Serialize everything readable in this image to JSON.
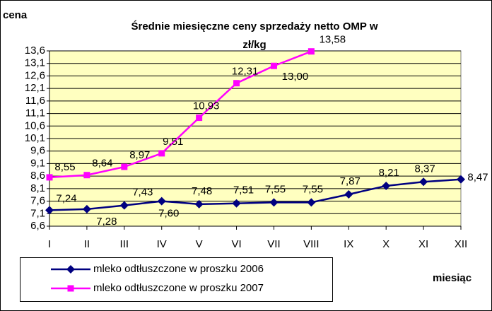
{
  "chart_data": {
    "type": "line",
    "title": [
      "Średnie miesięczne ceny sprzedaży netto OMP w",
      "zł/kg"
    ],
    "y_label": "cena",
    "x_label": "miesiąc",
    "categories": [
      "I",
      "II",
      "III",
      "IV",
      "V",
      "VI",
      "VII",
      "VIII",
      "IX",
      "X",
      "XI",
      "XII"
    ],
    "series": [
      {
        "name": "mleko odtłuszczone w  proszku 2006",
        "color": "#000080",
        "marker": "diamond",
        "values": [
          7.24,
          7.28,
          7.43,
          7.6,
          7.48,
          7.51,
          7.55,
          7.55,
          7.87,
          8.21,
          8.37,
          8.47
        ],
        "value_labels": [
          "7,24",
          "7,28",
          "7,43",
          "7,60",
          "7,48",
          "7,51",
          "7,55",
          "7,55",
          "7,87",
          "8,21",
          "8,37",
          "8,47"
        ]
      },
      {
        "name": "mleko odtłuszczone w  proszku 2007",
        "color": "#ff00ff",
        "marker": "square",
        "values": [
          8.55,
          8.64,
          8.97,
          9.51,
          10.93,
          12.31,
          13.0,
          13.58,
          null,
          null,
          null,
          null
        ],
        "value_labels": [
          "8,55",
          "8,64",
          "8,97",
          "9,51",
          "10,93",
          "12,31",
          "13,00",
          "13,58",
          null,
          null,
          null,
          null
        ]
      }
    ],
    "ylim": [
      6.6,
      13.6
    ],
    "yticks": [
      {
        "value": 6.6,
        "label": "6,6"
      },
      {
        "value": 7.1,
        "label": "7,1"
      },
      {
        "value": 7.6,
        "label": "7,6"
      },
      {
        "value": 8.1,
        "label": "8,1"
      },
      {
        "value": 8.6,
        "label": "8,6"
      },
      {
        "value": 9.1,
        "label": "9,1"
      },
      {
        "value": 9.6,
        "label": "9,6"
      },
      {
        "value": 10.1,
        "label": "10,1"
      },
      {
        "value": 10.6,
        "label": "10,6"
      },
      {
        "value": 11.1,
        "label": "11,1"
      },
      {
        "value": 11.6,
        "label": "11,6"
      },
      {
        "value": 12.1,
        "label": "12,1"
      },
      {
        "value": 12.6,
        "label": "12,6"
      },
      {
        "value": 13.1,
        "label": "13,1"
      },
      {
        "value": 13.6,
        "label": "13,6"
      }
    ],
    "grid": true,
    "plot_background": "#ffffc0",
    "legend": "bottom-left"
  }
}
